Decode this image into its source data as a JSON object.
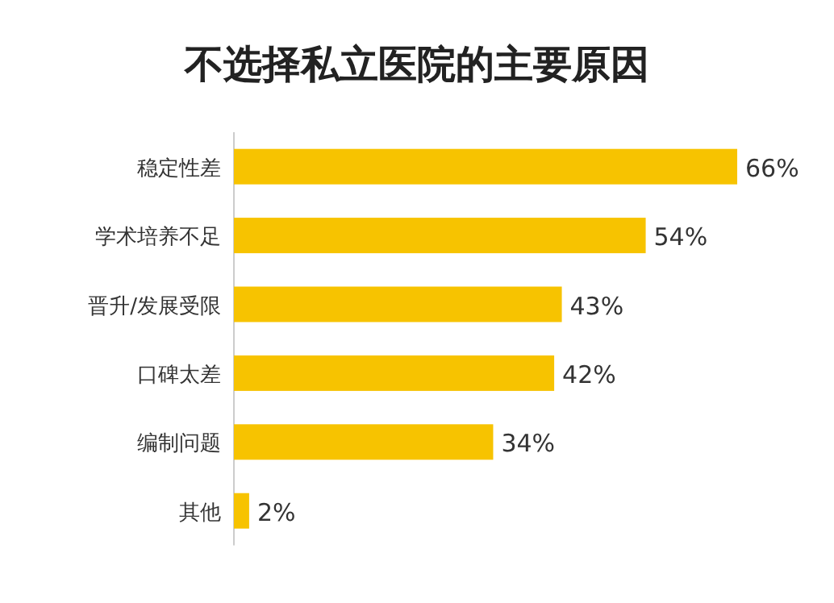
{
  "chart_data": {
    "type": "bar",
    "orientation": "horizontal",
    "title": "不选择私立医院的主要原因",
    "categories": [
      "稳定性差",
      "学术培养不足",
      "晋升/发展受限",
      "口碑太差",
      "编制问题",
      "其他"
    ],
    "values": [
      66,
      54,
      43,
      42,
      34,
      2
    ],
    "value_labels": [
      "66%",
      "54%",
      "43%",
      "42%",
      "34%",
      "2%"
    ],
    "color": "#f7c300"
  }
}
